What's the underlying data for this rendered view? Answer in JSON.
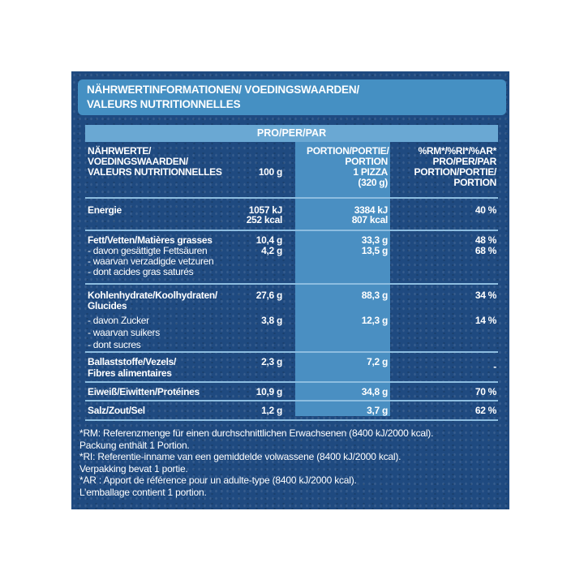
{
  "title": {
    "line1": "NÄHRWERTINFORMATIONEN/ VOEDINGSWAARDEN/",
    "line2": "VALEURS NUTRITIONNELLES"
  },
  "per_label": "PRO/PER/PAR",
  "columns": {
    "label": [
      "NÄHRWERTE/",
      "VOEDINGSWAARDEN/",
      "VALEURS NUTRITIONNELLES"
    ],
    "per100": "100 g",
    "portion": [
      "PORTION/PORTIE/",
      "PORTION",
      "1 PIZZA",
      "(320 g)"
    ],
    "ri": [
      "%RM*/%RI*/%AR*",
      "PRO/PER/PAR",
      "PORTION/PORTIE/",
      "PORTION"
    ]
  },
  "rows": {
    "energy": {
      "label": "Energie",
      "per100": [
        "1057 kJ",
        "252 kcal"
      ],
      "portion": [
        "3384 kJ",
        "807 kcal"
      ],
      "ri": "40 %"
    },
    "fat": {
      "label": "Fett/Vetten/Matières grasses",
      "per100": "10,4 g",
      "portion": "33,3 g",
      "ri": "48 %"
    },
    "sat": {
      "lines": [
        "- davon gesättigte Fettsäuren",
        "- waarvan verzadigde vetzuren",
        "- dont acides gras saturés"
      ],
      "per100": "4,2 g",
      "portion": "13,5 g",
      "ri": "68 %"
    },
    "carbs": {
      "lines": [
        "Kohlenhydrate/Koolhydraten/",
        "Glucides"
      ],
      "per100": "27,6 g",
      "portion": "88,3 g",
      "ri": "34 %"
    },
    "sugar": {
      "lines": [
        "- davon Zucker",
        "- waarvan suikers",
        "- dont sucres"
      ],
      "per100": "3,8 g",
      "portion": "12,3 g",
      "ri": "14 %"
    },
    "fibre": {
      "lines": [
        "Ballaststoffe/Vezels/",
        "Fibres alimentaires"
      ],
      "per100": "2,3 g",
      "portion": "7,2 g",
      "ri": "-"
    },
    "protein": {
      "label": "Eiweiß/Eiwitten/Protéines",
      "per100": "10,9 g",
      "portion": "34,8 g",
      "ri": "70 %"
    },
    "salt": {
      "label": "Salz/Zout/Sel",
      "per100": "1,2 g",
      "portion": "3,7 g",
      "ri": "62 %"
    }
  },
  "footnotes": [
    "*RM: Referenzmenge für einen durchschnittlichen Erwachsenen (8400 kJ/2000 kcal).",
    "Packung enthält 1 Portion.",
    "*RI: Referentie-inname van een gemiddelde volwassene (8400 kJ/2000 kcal).",
    "Verpakking bevat 1 portie.",
    "*AR : Apport de référence pour un adulte-type (8400 kJ/2000 kcal).",
    "L’emballage contient 1 portion."
  ],
  "colors": {
    "panel": "#1f4a80",
    "header": "#4590c3",
    "highlight": "#4a8fc2",
    "text": "#ffffff"
  }
}
